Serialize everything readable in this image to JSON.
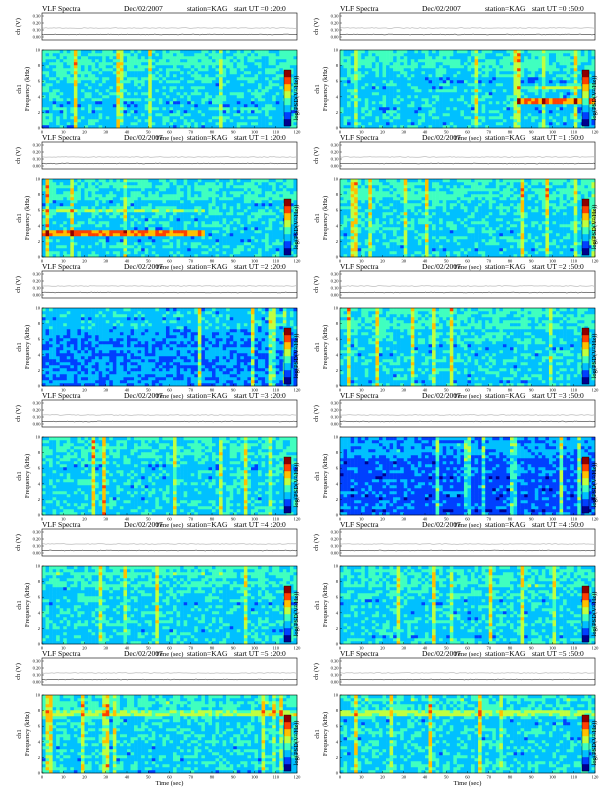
{
  "header_text": {
    "title": "VLF Spectra",
    "date": "Dec/02/2007",
    "station": "station=KAG",
    "start_prefix": "start  UT ="
  },
  "axis_text": {
    "time_label": "Time (sec)",
    "freq_label": "Frequency (kHz)",
    "ch_label": "ch1",
    "ch_top_label": "ch (V)",
    "cbar_label": "log(PSD(V²/Hz))"
  },
  "colormap": [
    "#00008f",
    "#0040ff",
    "#00c0ff",
    "#40ffbf",
    "#c0ff40",
    "#ffc000",
    "#ff4000",
    "#8f0000"
  ],
  "chart_data": [
    {
      "type": "heatmap",
      "start_ut": "0 :20:0",
      "x": [
        0,
        10,
        20,
        30,
        40,
        50,
        60,
        70,
        80,
        90,
        100,
        110,
        120
      ],
      "y_ticks": [
        0,
        2,
        4,
        6,
        8,
        10
      ],
      "top_ticks": [
        "0.30",
        "0.20",
        "0.10",
        "0.00"
      ],
      "xlabel": "Time (sec)",
      "ylabel": "Frequency (kHz)",
      "xlim": [
        0,
        120
      ],
      "ylim": [
        0,
        10
      ]
    },
    {
      "type": "heatmap",
      "start_ut": "0 :50:0",
      "x": [
        0,
        10,
        20,
        30,
        40,
        50,
        60,
        70,
        80,
        90,
        100,
        110,
        120
      ],
      "y_ticks": [
        0,
        2,
        4,
        6,
        8,
        10
      ],
      "top_ticks": [
        "0.30",
        "0.20",
        "0.10",
        "0.00"
      ],
      "xlabel": "Time (sec)",
      "ylabel": "Frequency (kHz)",
      "xlim": [
        0,
        120
      ],
      "ylim": [
        0,
        10
      ]
    },
    {
      "type": "heatmap",
      "start_ut": "1 :20:0",
      "x": [
        0,
        10,
        20,
        30,
        40,
        50,
        60,
        70,
        80,
        90,
        100,
        110,
        120
      ],
      "y_ticks": [
        0,
        2,
        4,
        6,
        8,
        10
      ],
      "top_ticks": [
        "0.30",
        "0.20",
        "0.10",
        "0.00"
      ],
      "xlabel": "Time (sec)",
      "ylabel": "Frequency (kHz)",
      "xlim": [
        0,
        120
      ],
      "ylim": [
        0,
        10
      ]
    },
    {
      "type": "heatmap",
      "start_ut": "1 :50:0",
      "x": [
        0,
        10,
        20,
        30,
        40,
        50,
        60,
        70,
        80,
        90,
        100,
        110,
        120
      ],
      "y_ticks": [
        0,
        2,
        4,
        6,
        8,
        10
      ],
      "top_ticks": [
        "0.30",
        "0.20",
        "0.10",
        "0.00"
      ],
      "xlabel": "Time (sec)",
      "ylabel": "Frequency (kHz)",
      "xlim": [
        0,
        120
      ],
      "ylim": [
        0,
        10
      ]
    },
    {
      "type": "heatmap",
      "start_ut": "2 :20:0",
      "x": [
        0,
        10,
        20,
        30,
        40,
        50,
        60,
        70,
        80,
        90,
        100,
        110,
        120
      ],
      "y_ticks": [
        0,
        2,
        4,
        6,
        8,
        10
      ],
      "top_ticks": [
        "0.30",
        "0.20",
        "0.10",
        "0.00"
      ],
      "xlabel": "Time (sec)",
      "ylabel": "Frequency (kHz)",
      "xlim": [
        0,
        120
      ],
      "ylim": [
        0,
        10
      ]
    },
    {
      "type": "heatmap",
      "start_ut": "2 :50:0",
      "x": [
        0,
        10,
        20,
        30,
        40,
        50,
        60,
        70,
        80,
        90,
        100,
        110,
        120
      ],
      "y_ticks": [
        0,
        2,
        4,
        6,
        8,
        10
      ],
      "top_ticks": [
        "0.30",
        "0.20",
        "0.10",
        "0.00"
      ],
      "xlabel": "Time (sec)",
      "ylabel": "Frequency (kHz)",
      "xlim": [
        0,
        120
      ],
      "ylim": [
        0,
        10
      ]
    },
    {
      "type": "heatmap",
      "start_ut": "3 :20:0",
      "x": [
        0,
        10,
        20,
        30,
        40,
        50,
        60,
        70,
        80,
        90,
        100,
        110,
        120
      ],
      "y_ticks": [
        0,
        2,
        4,
        6,
        8,
        10
      ],
      "top_ticks": [
        "0.30",
        "0.20",
        "0.10",
        "0.00"
      ],
      "xlabel": "Time (sec)",
      "ylabel": "Frequency (kHz)",
      "xlim": [
        0,
        120
      ],
      "ylim": [
        0,
        10
      ]
    },
    {
      "type": "heatmap",
      "start_ut": "3 :50:0",
      "x": [
        0,
        10,
        20,
        30,
        40,
        50,
        60,
        70,
        80,
        90,
        100,
        110,
        120
      ],
      "y_ticks": [
        0,
        2,
        4,
        6,
        8,
        10
      ],
      "top_ticks": [
        "0.30",
        "0.20",
        "0.10",
        "0.00"
      ],
      "xlabel": "Time (sec)",
      "ylabel": "Frequency (kHz)",
      "xlim": [
        0,
        120
      ],
      "ylim": [
        0,
        10
      ]
    },
    {
      "type": "heatmap",
      "start_ut": "4 :20:0",
      "x": [
        0,
        10,
        20,
        30,
        40,
        50,
        60,
        70,
        80,
        90,
        100,
        110,
        120
      ],
      "y_ticks": [
        0,
        2,
        4,
        6,
        8,
        10
      ],
      "top_ticks": [
        "0.30",
        "0.20",
        "0.10",
        "0.00"
      ],
      "xlabel": "Time (sec)",
      "ylabel": "Frequency (kHz)",
      "xlim": [
        0,
        120
      ],
      "ylim": [
        0,
        10
      ]
    },
    {
      "type": "heatmap",
      "start_ut": "4 :50:0",
      "x": [
        0,
        10,
        20,
        30,
        40,
        50,
        60,
        70,
        80,
        90,
        100,
        110,
        120
      ],
      "y_ticks": [
        0,
        2,
        4,
        6,
        8,
        10
      ],
      "top_ticks": [
        "0.30",
        "0.20",
        "0.10",
        "0.00"
      ],
      "xlabel": "Time (sec)",
      "ylabel": "Frequency (kHz)",
      "xlim": [
        0,
        120
      ],
      "ylim": [
        0,
        10
      ]
    },
    {
      "type": "heatmap",
      "start_ut": "5 :20:0",
      "x": [
        0,
        10,
        20,
        30,
        40,
        50,
        60,
        70,
        80,
        90,
        100,
        110,
        120
      ],
      "y_ticks": [
        0,
        2,
        4,
        6,
        8,
        10
      ],
      "top_ticks": [
        "0.30",
        "0.20",
        "0.10",
        "0.00"
      ],
      "xlabel": "Time (sec)",
      "ylabel": "Frequency (kHz)",
      "xlim": [
        0,
        120
      ],
      "ylim": [
        0,
        10
      ]
    },
    {
      "type": "heatmap",
      "start_ut": "5 :50:0",
      "x": [
        0,
        10,
        20,
        30,
        40,
        50,
        60,
        70,
        80,
        90,
        100,
        110,
        120
      ],
      "y_ticks": [
        0,
        2,
        4,
        6,
        8,
        10
      ],
      "top_ticks": [
        "0.30",
        "0.20",
        "0.10",
        "0.00"
      ],
      "xlabel": "Time (sec)",
      "ylabel": "Frequency (kHz)",
      "xlim": [
        0,
        120
      ],
      "ylim": [
        0,
        10
      ]
    }
  ]
}
